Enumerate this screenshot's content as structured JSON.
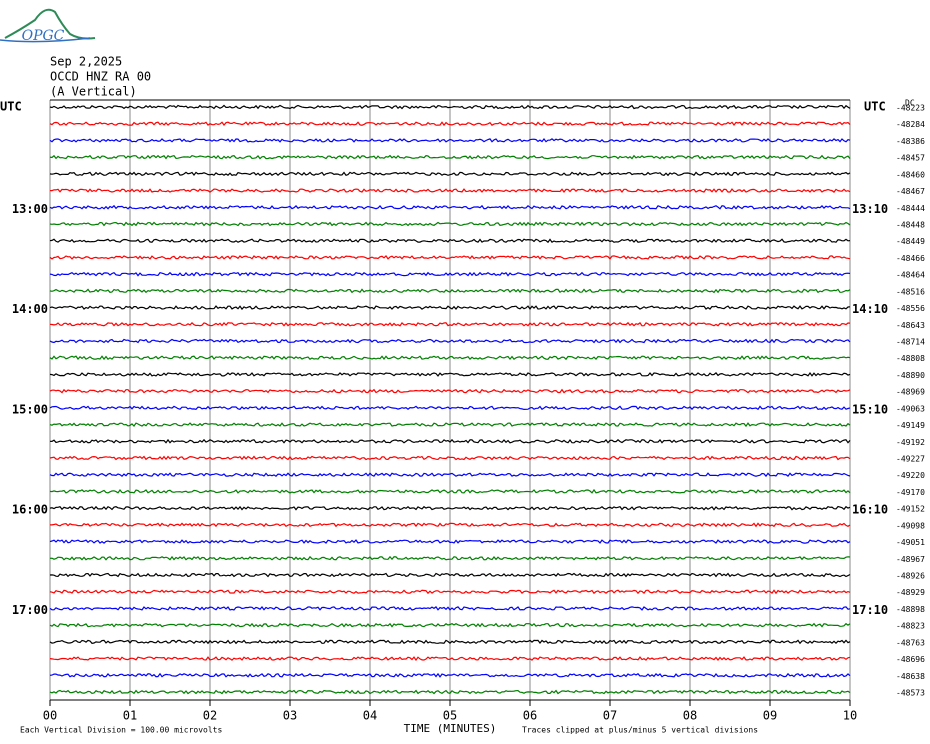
{
  "chart_data": {
    "type": "helicorder",
    "logo": "OPGC",
    "title": "Sep 2,2025",
    "subtitle": "OCCD HNZ RA 00",
    "component": "(A Vertical)",
    "left_axis_label": "UTC",
    "right_axis_label": "UTC",
    "dc_label": "DC",
    "left_labels": [
      null,
      null,
      null,
      null,
      null,
      null,
      "13:00",
      null,
      null,
      null,
      null,
      null,
      "14:00",
      null,
      null,
      null,
      null,
      null,
      "15:00",
      null,
      null,
      null,
      null,
      null,
      "16:00",
      null,
      null,
      null,
      null,
      null,
      "17:00",
      null,
      null,
      null,
      null,
      null
    ],
    "right_labels": [
      null,
      null,
      null,
      null,
      null,
      null,
      "13:10",
      null,
      null,
      null,
      null,
      null,
      "14:10",
      null,
      null,
      null,
      null,
      null,
      "15:10",
      null,
      null,
      null,
      null,
      null,
      "16:10",
      null,
      null,
      null,
      null,
      null,
      "17:10",
      null,
      null,
      null,
      null,
      null
    ],
    "dc": [
      -48223,
      -48284,
      -48386,
      -48457,
      -48460,
      -48467,
      -48444,
      -48448,
      -48449,
      -48466,
      -48464,
      -48516,
      -48556,
      -48643,
      -48714,
      -48808,
      -48890,
      -48969,
      -49063,
      -49149,
      -49192,
      -49227,
      -49220,
      -49170,
      -49152,
      -49098,
      -49051,
      -48967,
      -48926,
      -48929,
      -48898,
      -48823,
      -48763,
      -48696,
      -48638,
      -48573
    ],
    "colors": [
      "#000000",
      "#ff0000",
      "#0000ff",
      "#007f00"
    ],
    "xlim": [
      0,
      10
    ],
    "xticks": [
      {
        "value": 0,
        "label": "00"
      },
      {
        "value": 1,
        "label": "01"
      },
      {
        "value": 2,
        "label": "02"
      },
      {
        "value": 3,
        "label": "03"
      },
      {
        "value": 4,
        "label": "04"
      },
      {
        "value": 5,
        "label": "05"
      },
      {
        "value": 6,
        "label": "06"
      },
      {
        "value": 7,
        "label": "07"
      },
      {
        "value": 8,
        "label": "08"
      },
      {
        "value": 9,
        "label": "09"
      },
      10
    ],
    "xlabel": "TIME (MINUTES)",
    "scale_note": "Each Vertical Division =  100.00 microvolts",
    "clip_note": "Traces clipped at plus/minus 5 vertical divisions",
    "grid": true
  }
}
